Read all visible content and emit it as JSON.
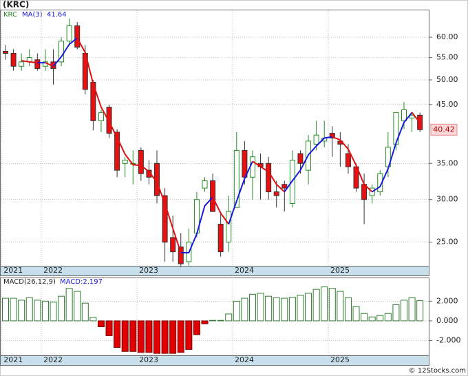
{
  "chart_data": [
    {
      "type": "candlestick",
      "title": "(KRC)",
      "symbol": "KRC",
      "categories": [
        "2021",
        null,
        null,
        null,
        null,
        "2022",
        null,
        null,
        null,
        null,
        null,
        null,
        null,
        null,
        null,
        null,
        null,
        "2023",
        null,
        null,
        null,
        null,
        null,
        null,
        null,
        null,
        null,
        null,
        null,
        "2024",
        null,
        null,
        null,
        null,
        null,
        null,
        null,
        null,
        null,
        null,
        null,
        "2025",
        null,
        null,
        null,
        null,
        null,
        null,
        null,
        null,
        null,
        null,
        null
      ],
      "open": [
        56.5,
        56,
        53,
        54,
        54.5,
        53,
        54,
        54,
        59,
        63,
        56,
        49.5,
        42,
        44.5,
        40,
        35,
        35,
        37,
        34,
        35,
        30.5,
        25.5,
        24.5,
        23,
        26,
        31.5,
        32.5,
        27,
        25,
        29,
        37,
        33,
        35,
        35,
        31,
        32,
        29.5,
        36.5,
        34,
        38,
        38.5,
        39.8,
        38.5,
        36.5,
        34.5,
        32,
        30.5,
        31,
        34.5,
        38,
        42,
        42.5,
        43
      ],
      "high": [
        58,
        57,
        56,
        57,
        56,
        57,
        57,
        60,
        65,
        64,
        58,
        50,
        44,
        45,
        40.5,
        36,
        37,
        37.5,
        35.5,
        37,
        31.5,
        28,
        26,
        26.5,
        31,
        33,
        33.5,
        28.5,
        30.5,
        40,
        38.5,
        37,
        36.5,
        36,
        32.5,
        32.5,
        37,
        37,
        39.5,
        42,
        42,
        41,
        40,
        38,
        35,
        33.5,
        32,
        34,
        40,
        43.5,
        45.5,
        43.5,
        43.5
      ],
      "low": [
        54.5,
        52,
        52,
        53,
        52,
        52,
        49,
        53,
        58,
        57,
        47,
        40.3,
        40,
        39,
        33,
        33,
        32,
        32.5,
        32,
        29.5,
        23,
        23,
        22.5,
        22.6,
        25.5,
        31,
        28.5,
        23.5,
        24,
        29,
        32,
        30,
        30,
        30,
        29,
        28.5,
        29,
        33.5,
        32,
        37,
        37.5,
        36,
        34.5,
        33.5,
        31,
        27,
        29.5,
        30.5,
        33,
        37,
        40.5,
        40,
        40
      ],
      "close": [
        56,
        53,
        54,
        55,
        52.5,
        54,
        52.5,
        59,
        63,
        57.5,
        48,
        42,
        43.5,
        39.8,
        34,
        35.5,
        35,
        33.5,
        33,
        30.5,
        25,
        24,
        22.8,
        25,
        30,
        32.5,
        28.5,
        24,
        28.5,
        37,
        33,
        36,
        34.5,
        31,
        30.5,
        31.5,
        35.5,
        35,
        38.5,
        39.5,
        39,
        39,
        38,
        34.5,
        31.5,
        30,
        31.5,
        33.5,
        37.5,
        43.5,
        44,
        43,
        40.42
      ],
      "up_color": "#228b22",
      "down_color": "#e81010",
      "series": [
        {
          "name": "MA(3)",
          "rising_color": "#1a1adc",
          "falling_color": "#e01010",
          "values": [
            null,
            null,
            54.3,
            54,
            53.8,
            53.8,
            53,
            55.2,
            58.2,
            59.8,
            56.2,
            49.2,
            44.5,
            41.8,
            39.1,
            36.4,
            34.8,
            34.7,
            33.8,
            32.3,
            29.5,
            26.5,
            23.9,
            23.9,
            25.9,
            29.2,
            30.3,
            28.3,
            27,
            29.8,
            32.8,
            35.3,
            34.5,
            33.8,
            32,
            31,
            32.5,
            34,
            36.3,
            37.7,
            39,
            39.2,
            38.7,
            37.2,
            34.7,
            32,
            31,
            31.7,
            34.2,
            38.2,
            41.7,
            43.5,
            41.64
          ]
        }
      ],
      "ma_value": 41.64,
      "last_price": 40.42,
      "ylim": [
        22.6,
        67.3
      ],
      "log_scale": true,
      "grid": true,
      "yticks": [
        {
          "value": 25,
          "label": "25.00"
        },
        {
          "value": 30,
          "label": "30.00"
        },
        {
          "value": 35,
          "label": "35.00"
        },
        {
          "value": 45,
          "label": "45.00"
        },
        {
          "value": 50,
          "label": "50.00"
        },
        {
          "value": 55,
          "label": "55.00"
        },
        {
          "value": 60,
          "label": "60.00"
        }
      ]
    },
    {
      "type": "bar",
      "title": "MACD(26,12,9)",
      "value_text": "MACD:2.197",
      "values": [
        2.3,
        2.3,
        2.1,
        2.35,
        2.1,
        2.0,
        1.9,
        2.5,
        3.3,
        3.0,
        1.8,
        0.35,
        -0.6,
        -1.5,
        -2.7,
        -3.1,
        -3.1,
        -3.2,
        -3.2,
        -3.3,
        -3.3,
        -3.3,
        -3.2,
        -2.9,
        -1.4,
        -0.3,
        0.05,
        0.05,
        0.7,
        2.0,
        2.3,
        2.7,
        2.8,
        2.5,
        2.35,
        2.3,
        2.4,
        2.6,
        2.8,
        3.2,
        3.45,
        3.3,
        3.0,
        2.35,
        1.45,
        0.75,
        0.4,
        0.55,
        0.75,
        1.65,
        2.1,
        2.35,
        2.05
      ],
      "color": "#2e7d2e",
      "negative_color": "#e00000",
      "ylim": [
        -3.5,
        4.4
      ],
      "grid": true,
      "yticks": [
        {
          "value": -2,
          "label": "-2.000"
        },
        {
          "value": 0,
          "label": "0.000"
        },
        {
          "value": 2,
          "label": "2.000"
        }
      ]
    }
  ],
  "footer": "© 12Stocks.com"
}
